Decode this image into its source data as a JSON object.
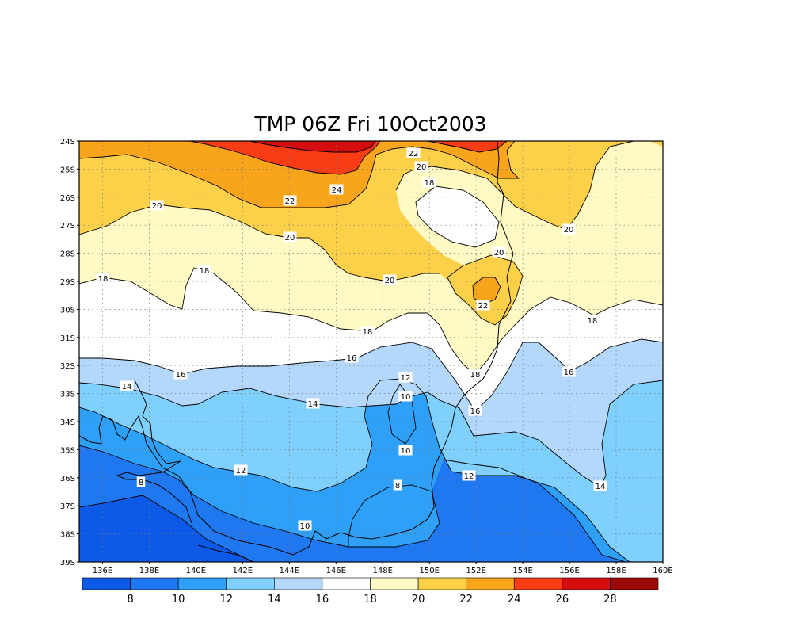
{
  "chart_data": {
    "type": "heatmap",
    "title": "TMP 06Z Fri 10Oct2003",
    "x_ticks": [
      "136E",
      "138E",
      "140E",
      "142E",
      "144E",
      "146E",
      "148E",
      "150E",
      "152E",
      "154E",
      "156E",
      "158E",
      "160E"
    ],
    "y_ticks": [
      "24S",
      "25S",
      "26S",
      "27S",
      "28S",
      "29S",
      "30S",
      "31S",
      "32S",
      "33S",
      "34S",
      "35S",
      "36S",
      "37S",
      "38S",
      "39S"
    ],
    "xlim": [
      135,
      160
    ],
    "ylim": [
      -39,
      -24
    ],
    "grid": true,
    "grid_style": "dotted",
    "colorbar": {
      "placement": "bottom",
      "labels": [
        "8",
        "10",
        "12",
        "14",
        "16",
        "18",
        "20",
        "22",
        "24",
        "26",
        "28"
      ],
      "colors": [
        "#0e5ae8",
        "#1f78f0",
        "#2ea0f7",
        "#7fd0fc",
        "#b4d8fc",
        "#ffffff",
        "#fff9c4",
        "#fdd04a",
        "#f9a51b",
        "#f93c13",
        "#d40e0e",
        "#9c0707"
      ]
    },
    "contour_labels": [
      "20",
      "18",
      "18",
      "16",
      "14",
      "22",
      "20",
      "18",
      "24",
      "22",
      "20",
      "18",
      "20",
      "16",
      "12",
      "10",
      "10",
      "12",
      "8",
      "12",
      "14",
      "16",
      "18",
      "22",
      "20",
      "20",
      "18",
      "16",
      "14",
      "10",
      "8"
    ]
  }
}
